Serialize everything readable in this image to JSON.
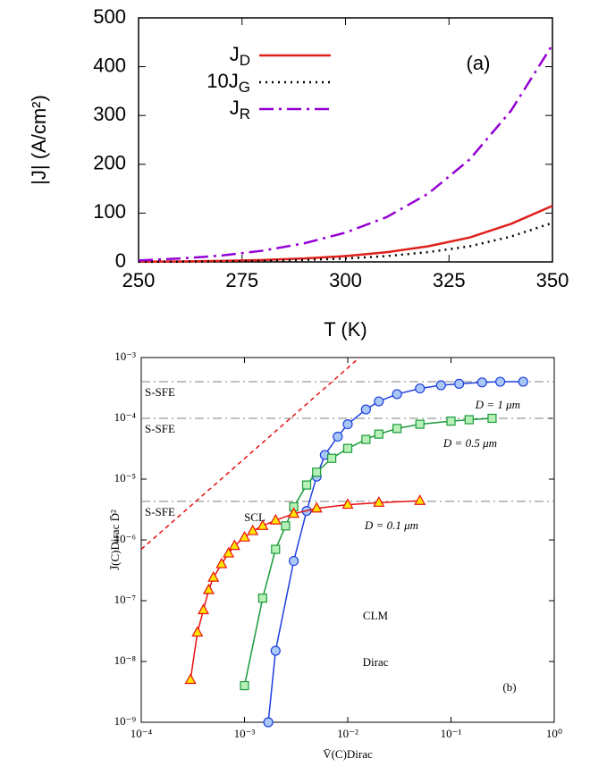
{
  "chart_data": [
    {
      "type": "line",
      "xlabel": "T (K)",
      "ylabel": "|J| (A/cm²)",
      "annotations": [
        "(a)"
      ],
      "xlim": [
        250,
        350
      ],
      "ylim": [
        0,
        500
      ],
      "xticks": [
        250,
        275,
        300,
        325,
        350
      ],
      "yticks": [
        0,
        100,
        200,
        300,
        400,
        500
      ],
      "x": [
        250,
        260,
        270,
        280,
        290,
        300,
        310,
        320,
        330,
        340,
        350
      ],
      "series": [
        {
          "name": "JD",
          "color": "#e0201b",
          "style": "solid",
          "values": [
            0.5,
            1,
            2,
            4,
            7,
            12,
            20,
            32,
            50,
            78,
            115
          ]
        },
        {
          "name": "10JG",
          "color": "#000000",
          "style": "dotted",
          "values": [
            0.2,
            0.5,
            1,
            2,
            4,
            7,
            12,
            20,
            32,
            52,
            80
          ]
        },
        {
          "name": "JR",
          "color": "#9400d3",
          "style": "dashdot",
          "values": [
            3,
            7,
            13,
            23,
            38,
            60,
            92,
            140,
            210,
            310,
            445
          ]
        }
      ]
    },
    {
      "type": "scatter",
      "xlabel": "V̄(C)Dirac",
      "ylabel": "J̄(C)Dirac D̄²",
      "xlog": true,
      "ylog": true,
      "annotations": [
        "CLM",
        "Dirac",
        "(b)"
      ],
      "xlim": [
        0.0001,
        1
      ],
      "ylim": [
        1e-09,
        0.001
      ],
      "xticks": [
        {
          "value": 0.0001,
          "label": "10⁻⁴"
        },
        {
          "value": 0.001,
          "label": "10⁻³"
        },
        {
          "value": 0.01,
          "label": "10⁻²"
        },
        {
          "value": 0.1,
          "label": "10⁻¹"
        },
        {
          "value": 1,
          "label": "10⁰"
        }
      ],
      "yticks": [
        {
          "value": 1e-09,
          "label": "10⁻⁹"
        },
        {
          "value": 1e-08,
          "label": "10⁻⁸"
        },
        {
          "value": 1e-07,
          "label": "10⁻⁷"
        },
        {
          "value": 1e-06,
          "label": "10⁻⁶"
        },
        {
          "value": 1e-05,
          "label": "10⁻⁵"
        },
        {
          "value": 0.0001,
          "label": "10⁻⁴"
        },
        {
          "value": 0.001,
          "label": "10⁻³"
        }
      ],
      "reference_lines": [
        {
          "label": "S-SFE",
          "value": 0.0004
        },
        {
          "label": "S-SFE",
          "value": 0.0001
        },
        {
          "label": "S-SFE",
          "value": 4.3e-06
        }
      ],
      "reference_color": "#808080",
      "series": [
        {
          "name": "D = 1 μm",
          "color": "#1f3fe0",
          "marker": "circle",
          "marker_fill": "#a9c8f5",
          "x": [
            0.0017,
            0.002,
            0.003,
            0.004,
            0.005,
            0.006,
            0.008,
            0.01,
            0.015,
            0.02,
            0.03,
            0.05,
            0.08,
            0.12,
            0.2,
            0.3,
            0.5
          ],
          "values": [
            1e-09,
            1.5e-08,
            4.5e-07,
            3e-06,
            1.1e-05,
            2.5e-05,
            5e-05,
            8e-05,
            0.00014,
            0.00019,
            0.00025,
            0.00031,
            0.00035,
            0.00037,
            0.00039,
            0.0004,
            0.0004
          ]
        },
        {
          "name": "D = 0.5 μm",
          "color": "#1a9a3a",
          "marker": "square",
          "marker_fill": "#b7f0b7",
          "x": [
            0.001,
            0.0015,
            0.002,
            0.0025,
            0.003,
            0.004,
            0.005,
            0.007,
            0.01,
            0.015,
            0.02,
            0.03,
            0.05,
            0.1,
            0.15,
            0.25
          ],
          "values": [
            4e-09,
            1.1e-07,
            7e-07,
            1.7e-06,
            3.5e-06,
            8e-06,
            1.3e-05,
            2.2e-05,
            3.2e-05,
            4.5e-05,
            5.5e-05,
            6.8e-05,
            8e-05,
            9e-05,
            9.5e-05,
            0.0001
          ]
        },
        {
          "name": "D = 0.1 μm",
          "color": "#e81010",
          "marker": "triangle",
          "marker_fill": "#ffe600",
          "x": [
            0.0003,
            0.00035,
            0.0004,
            0.00045,
            0.0005,
            0.0006,
            0.0007,
            0.0008,
            0.001,
            0.0012,
            0.0015,
            0.002,
            0.003,
            0.005,
            0.01,
            0.02,
            0.05
          ],
          "values": [
            5e-09,
            3e-08,
            7e-08,
            1.5e-07,
            2.4e-07,
            4e-07,
            6e-07,
            8e-07,
            1.1e-06,
            1.4e-06,
            1.7e-06,
            2.1e-06,
            2.7e-06,
            3.3e-06,
            3.8e-06,
            4.1e-06,
            4.4e-06
          ]
        },
        {
          "name": "SCL",
          "color": "#e81010",
          "marker": "none",
          "style": "dashed",
          "x": [
            0.0001,
            0.013
          ],
          "values": [
            7e-07,
            0.001
          ]
        }
      ]
    }
  ]
}
